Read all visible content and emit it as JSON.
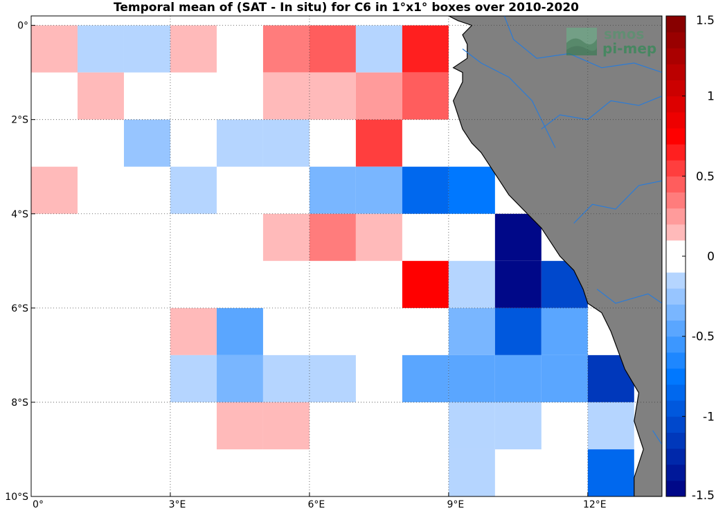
{
  "title": "Temporal mean of (SAT - In situ) for C6 in 1°x1° boxes over 2010-2020",
  "logo": {
    "line1": "smos",
    "line2": "pi-mep"
  },
  "chart_data": {
    "type": "heatmap",
    "title": "Temporal mean of (SAT - In situ) for C6 in 1°x1° boxes over 2010-2020",
    "x_range": [
      0,
      13.6
    ],
    "y_range": [
      -10,
      0.2
    ],
    "x_ticks": [
      {
        "value": 0,
        "label": "0°"
      },
      {
        "value": 3,
        "label": "3°E"
      },
      {
        "value": 6,
        "label": "6°E"
      },
      {
        "value": 9,
        "label": "9°E"
      },
      {
        "value": 12,
        "label": "12°E"
      }
    ],
    "y_ticks": [
      {
        "value": 0,
        "label": "0°"
      },
      {
        "value": -2,
        "label": "2°S"
      },
      {
        "value": -4,
        "label": "4°S"
      },
      {
        "value": -6,
        "label": "6°S"
      },
      {
        "value": -8,
        "label": "8°S"
      },
      {
        "value": -10,
        "label": "10°S"
      }
    ],
    "grid": true,
    "colorbar": {
      "range": [
        -1.5,
        1.5
      ],
      "ticks": [
        1.5,
        1,
        0.5,
        0,
        -0.5,
        -1,
        -1.5
      ],
      "tick_labels": [
        "1.5",
        "1",
        "0.5",
        "0",
        "-0.5",
        "-1",
        "-1.5"
      ],
      "position": "right"
    },
    "colors": {
      "ocean": "#ffffff",
      "land": "#808080",
      "coast": "#000000",
      "rivers": "#2b7bd6"
    },
    "cells": [
      {
        "lon": 0,
        "lat": 0,
        "value": 0.15
      },
      {
        "lon": 1,
        "lat": 0,
        "value": -0.1
      },
      {
        "lon": 2,
        "lat": 0,
        "value": -0.1
      },
      {
        "lon": 3,
        "lat": 0,
        "value": 0.15
      },
      {
        "lon": 5,
        "lat": 0,
        "value": 0.3
      },
      {
        "lon": 6,
        "lat": 0,
        "value": 0.4
      },
      {
        "lon": 7,
        "lat": 0,
        "value": -0.1
      },
      {
        "lon": 8,
        "lat": 0,
        "value": 0.6
      },
      {
        "lon": 1,
        "lat": -1,
        "value": 0.15
      },
      {
        "lon": 5,
        "lat": -1,
        "value": 0.15
      },
      {
        "lon": 6,
        "lat": -1,
        "value": 0.15
      },
      {
        "lon": 7,
        "lat": -1,
        "value": 0.25
      },
      {
        "lon": 8,
        "lat": -1,
        "value": 0.4
      },
      {
        "lon": 2,
        "lat": -2,
        "value": -0.25
      },
      {
        "lon": 4,
        "lat": -2,
        "value": -0.2
      },
      {
        "lon": 5,
        "lat": -2,
        "value": -0.1
      },
      {
        "lon": 7,
        "lat": -2,
        "value": 0.55
      },
      {
        "lon": 0,
        "lat": -3,
        "value": 0.15
      },
      {
        "lon": 3,
        "lat": -3,
        "value": -0.1
      },
      {
        "lon": 6,
        "lat": -3,
        "value": -0.35
      },
      {
        "lon": 7,
        "lat": -3,
        "value": -0.35
      },
      {
        "lon": 8,
        "lat": -3,
        "value": -0.85
      },
      {
        "lon": 9,
        "lat": -3,
        "value": -0.75
      },
      {
        "lon": 5,
        "lat": -4,
        "value": 0.15
      },
      {
        "lon": 6,
        "lat": -4,
        "value": 0.3
      },
      {
        "lon": 7,
        "lat": -4,
        "value": 0.15
      },
      {
        "lon": 10,
        "lat": -4,
        "value": -1.45
      },
      {
        "lon": 8,
        "lat": -5,
        "value": 0.7
      },
      {
        "lon": 9,
        "lat": -5,
        "value": -0.2
      },
      {
        "lon": 10,
        "lat": -5,
        "value": -1.45
      },
      {
        "lon": 11,
        "lat": -5,
        "value": -1.05
      },
      {
        "lon": 3,
        "lat": -6,
        "value": 0.15
      },
      {
        "lon": 4,
        "lat": -6,
        "value": -0.5
      },
      {
        "lon": 9,
        "lat": -6,
        "value": -0.3
      },
      {
        "lon": 10,
        "lat": -6,
        "value": -0.9
      },
      {
        "lon": 11,
        "lat": -6,
        "value": -0.45
      },
      {
        "lon": 3,
        "lat": -7,
        "value": -0.2
      },
      {
        "lon": 4,
        "lat": -7,
        "value": -0.35
      },
      {
        "lon": 5,
        "lat": -7,
        "value": -0.1
      },
      {
        "lon": 6,
        "lat": -7,
        "value": -0.2
      },
      {
        "lon": 8,
        "lat": -7,
        "value": -0.45
      },
      {
        "lon": 9,
        "lat": -7,
        "value": -0.45
      },
      {
        "lon": 10,
        "lat": -7,
        "value": -0.45
      },
      {
        "lon": 11,
        "lat": -7,
        "value": -0.45
      },
      {
        "lon": 12,
        "lat": -7,
        "value": -1.2
      },
      {
        "lon": 4,
        "lat": -8,
        "value": 0.15
      },
      {
        "lon": 5,
        "lat": -8,
        "value": 0.15
      },
      {
        "lon": 9,
        "lat": -8,
        "value": -0.1
      },
      {
        "lon": 10,
        "lat": -8,
        "value": -0.1
      },
      {
        "lon": 12,
        "lat": -8,
        "value": -0.1
      },
      {
        "lon": 9,
        "lat": -9,
        "value": -0.2
      },
      {
        "lon": 12,
        "lat": -9,
        "value": -0.85
      }
    ],
    "land": [
      [
        9.0,
        0.2
      ],
      [
        13.6,
        0.2
      ],
      [
        13.6,
        -10
      ],
      [
        13.0,
        -10
      ],
      [
        13.0,
        -9.6
      ],
      [
        13.2,
        -9.0
      ],
      [
        13.0,
        -8.4
      ],
      [
        13.1,
        -7.8
      ],
      [
        12.8,
        -7.3
      ],
      [
        12.5,
        -6.5
      ],
      [
        12.3,
        -6.1
      ],
      [
        12.0,
        -5.9
      ],
      [
        11.9,
        -5.6
      ],
      [
        11.7,
        -5.2
      ],
      [
        11.4,
        -4.9
      ],
      [
        11.2,
        -4.6
      ],
      [
        11.0,
        -4.3
      ],
      [
        10.7,
        -4.0
      ],
      [
        10.3,
        -3.6
      ],
      [
        10.1,
        -3.3
      ],
      [
        9.9,
        -3.0
      ],
      [
        9.7,
        -2.7
      ],
      [
        9.5,
        -2.5
      ],
      [
        9.3,
        -2.2
      ],
      [
        9.2,
        -1.9
      ],
      [
        9.1,
        -1.6
      ],
      [
        9.2,
        -1.4
      ],
      [
        9.3,
        -1.2
      ],
      [
        9.3,
        -1.0
      ],
      [
        9.1,
        -0.9
      ],
      [
        9.4,
        -0.7
      ],
      [
        9.4,
        -0.4
      ],
      [
        9.3,
        -0.2
      ],
      [
        9.5,
        0.0
      ],
      [
        9.2,
        0.1
      ]
    ],
    "rivers": [
      [
        [
          10.2,
          0.2
        ],
        [
          10.4,
          -0.3
        ],
        [
          10.9,
          -0.7
        ],
        [
          11.6,
          -0.6
        ],
        [
          12.3,
          -0.9
        ],
        [
          13.0,
          -0.8
        ],
        [
          13.6,
          -1.0
        ]
      ],
      [
        [
          11.0,
          -2.2
        ],
        [
          11.4,
          -1.9
        ],
        [
          12.0,
          -2.0
        ],
        [
          12.5,
          -1.6
        ],
        [
          13.1,
          -1.7
        ],
        [
          13.6,
          -1.5
        ]
      ],
      [
        [
          11.7,
          -4.2
        ],
        [
          12.1,
          -3.8
        ],
        [
          12.6,
          -3.9
        ],
        [
          13.1,
          -3.4
        ],
        [
          13.6,
          -3.3
        ]
      ],
      [
        [
          12.2,
          -5.6
        ],
        [
          12.6,
          -5.9
        ],
        [
          13.3,
          -5.7
        ],
        [
          13.6,
          -5.9
        ]
      ],
      [
        [
          9.3,
          -0.5
        ],
        [
          9.7,
          -0.8
        ],
        [
          10.3,
          -1.1
        ],
        [
          10.8,
          -1.6
        ],
        [
          11.3,
          -2.6
        ]
      ],
      [
        [
          13.4,
          -8.6
        ],
        [
          13.6,
          -8.9
        ]
      ]
    ]
  }
}
